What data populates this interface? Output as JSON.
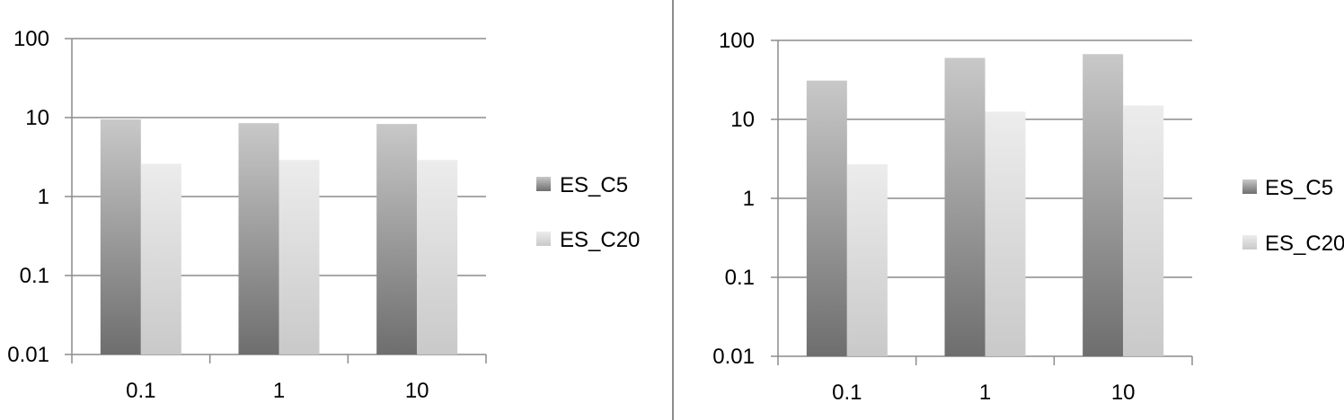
{
  "chart_data": [
    {
      "type": "bar",
      "y_scale": "log",
      "ylim": [
        0.01,
        100
      ],
      "y_ticks": [
        "100",
        "10",
        "1",
        "0.1",
        "0.01"
      ],
      "y_tick_values": [
        100,
        10,
        1,
        0.1,
        0.01
      ],
      "categories": [
        "0.1",
        "1",
        "10"
      ],
      "grid": true,
      "legend_position": "right",
      "series": [
        {
          "name": "ES_C5",
          "values": [
            9.5,
            8.5,
            8.3
          ]
        },
        {
          "name": "ES_C20",
          "values": [
            2.6,
            2.9,
            2.9
          ]
        }
      ]
    },
    {
      "type": "bar",
      "y_scale": "log",
      "ylim": [
        0.01,
        100
      ],
      "y_ticks": [
        "100",
        "10",
        "1",
        "0.1",
        "0.01"
      ],
      "y_tick_values": [
        100,
        10,
        1,
        0.1,
        0.01
      ],
      "categories": [
        "0.1",
        "1",
        "10"
      ],
      "grid": true,
      "legend_position": "right",
      "series": [
        {
          "name": "ES_C5",
          "values": [
            31,
            60,
            67
          ]
        },
        {
          "name": "ES_C20",
          "values": [
            2.7,
            12.5,
            15
          ]
        }
      ]
    }
  ],
  "colors": {
    "series_dark_top": "#c8c8c8",
    "series_dark_bottom": "#6e6e6e",
    "series_light_top": "#ececec",
    "series_light_bottom": "#c9c9c9",
    "grid": "#8c8c8c",
    "divider": "#8c8c8c"
  }
}
